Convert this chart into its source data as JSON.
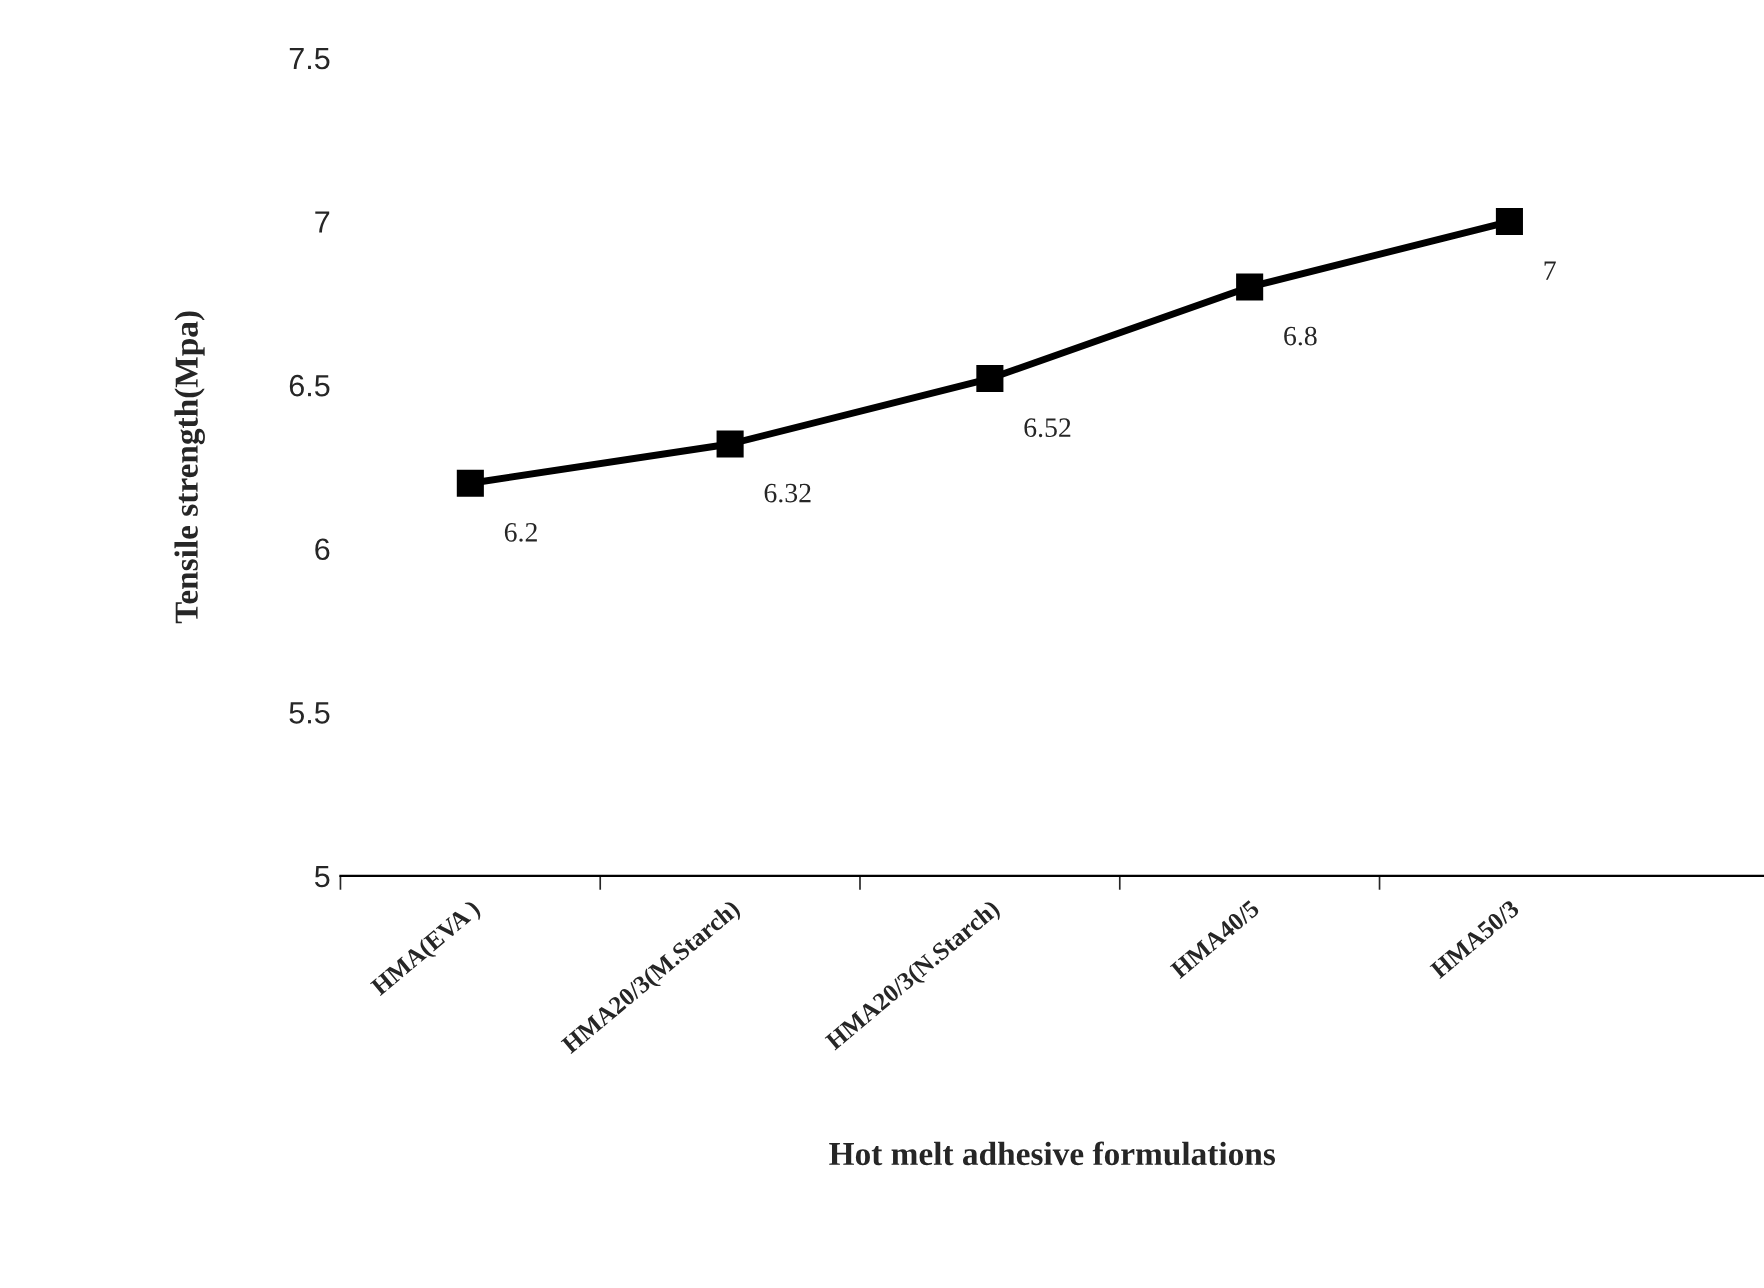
{
  "chart_data": {
    "type": "line",
    "xlabel": "Hot melt adhesive formulations",
    "ylabel": "Tensile strength(Mpa)",
    "categories": [
      "HMA(EVA )",
      "HMA20/3(M.Starch)",
      "HMA20/3(N.Starch)",
      "HMA40/5",
      "HMA50/3"
    ],
    "series": [
      {
        "color": "#000000",
        "values": [
          6.2,
          6.32,
          6.52,
          6.8,
          7
        ]
      }
    ],
    "ylim": [
      5,
      7.5
    ],
    "yticks": [
      5,
      5.5,
      6,
      6.5,
      7,
      7.5
    ],
    "data_labels": true,
    "marker": "square",
    "line_style": "solid",
    "grid": false
  }
}
